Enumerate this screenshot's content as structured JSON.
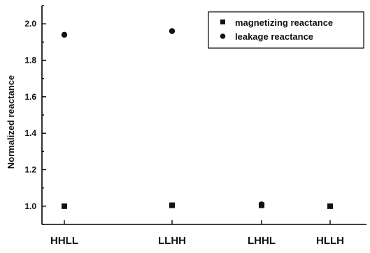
{
  "chart_data": {
    "type": "scatter",
    "title": "",
    "xlabel": "",
    "ylabel": "Normalized reactance",
    "categories": [
      "HHLL",
      "LLHH",
      "LHHL",
      "HLLH"
    ],
    "ylim": [
      0.9,
      2.1
    ],
    "yticks": [
      "1.0",
      "1.2",
      "1.4",
      "1.6",
      "1.8",
      "2.0"
    ],
    "grid": false,
    "legend_position": "top-right",
    "series": [
      {
        "name": "magnetizing reactance",
        "marker": "square",
        "values": [
          1.0,
          1.005,
          1.005,
          1.0
        ]
      },
      {
        "name": "leakage reactance",
        "marker": "circle",
        "values": [
          1.94,
          1.96,
          1.01,
          null
        ]
      }
    ]
  },
  "colors": {
    "marker": "#111111",
    "axis": "#000000",
    "background": "#ffffff"
  }
}
